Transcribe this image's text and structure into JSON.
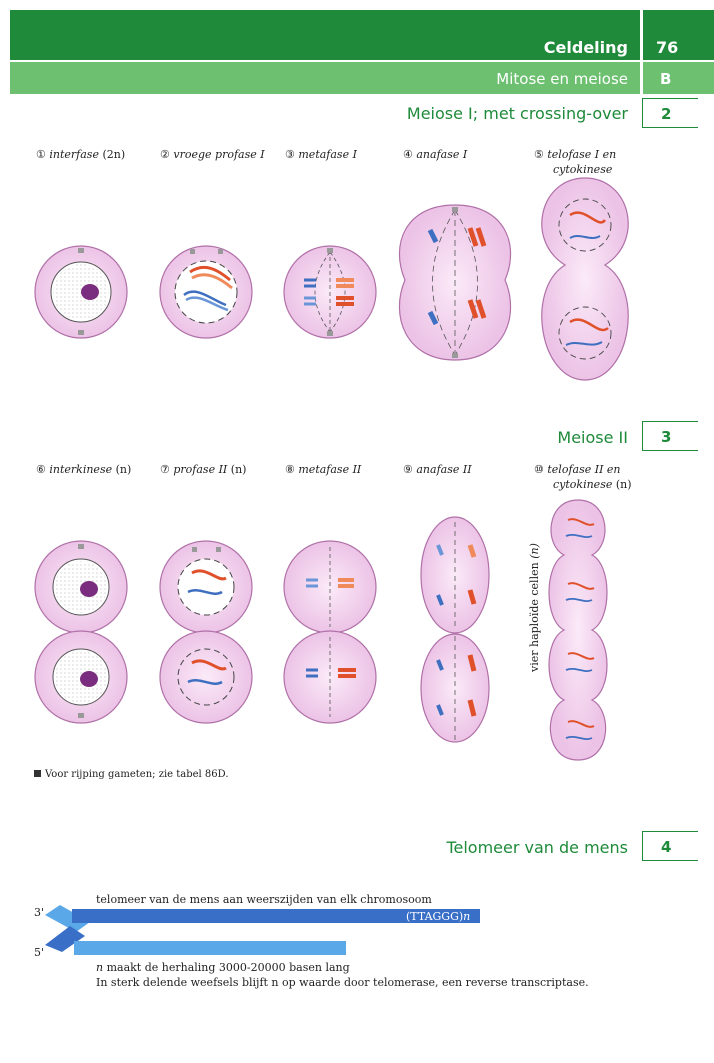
{
  "header": {
    "title": "Celdeling",
    "page_number": "76",
    "subtitle": "Mitose en meiose",
    "section_letter": "B"
  },
  "sections": {
    "s2": {
      "title": "Meiose I; met crossing-over",
      "number": "2"
    },
    "s3": {
      "title": "Meiose II",
      "number": "3"
    },
    "s4": {
      "title": "Telomeer van de mens",
      "number": "4"
    }
  },
  "meiose1": {
    "stage1": {
      "num": "①",
      "name": "interfase",
      "extra": "(2n)"
    },
    "stage2": {
      "num": "②",
      "name": "vroege profase I"
    },
    "stage3": {
      "num": "③",
      "name": "metafase I"
    },
    "stage4": {
      "num": "④",
      "name": "anafase I"
    },
    "stage5": {
      "num": "⑤",
      "name": "telofase I en",
      "line2": "cytokinese"
    }
  },
  "meiose2": {
    "stage6": {
      "num": "⑥",
      "name": "interkinese",
      "extra": "(n)"
    },
    "stage7": {
      "num": "⑦",
      "name": "profase II",
      "extra": "(n)"
    },
    "stage8": {
      "num": "⑧",
      "name": "metafase II"
    },
    "stage9": {
      "num": "⑨",
      "name": "anafase II"
    },
    "stage10": {
      "num": "⑩",
      "name": "telofase II en",
      "line2": "cytokinese",
      "extra": "(n)"
    },
    "cells_label": "vier haploïde cellen",
    "cells_n": "(n)"
  },
  "note": "Voor rijping gameten; zie tabel 86D.",
  "telomeer": {
    "top_label": "telomeer van de mens aan weerszijden van elk chromosoom",
    "repeat": "(TTAGGG)",
    "repeat_n": "n",
    "prime3": "3'",
    "prime5": "5'",
    "line1_n": "n",
    "line1": " maakt de herhaling 3000-20000 basen lang",
    "line2": "In sterk delende weefsels blijft n op waarde door telomerase, een reverse transcriptase."
  },
  "colors": {
    "dark_green": "#1e8a3a",
    "light_green": "#6cc070",
    "cell_fill": "#f3d3ef",
    "cell_stroke": "#b070a8",
    "red_chrom": "#e0502a",
    "blue_chrom": "#3e6fc0",
    "telomere_dark": "#3a6fc8",
    "telomere_light": "#5aa8e8"
  }
}
